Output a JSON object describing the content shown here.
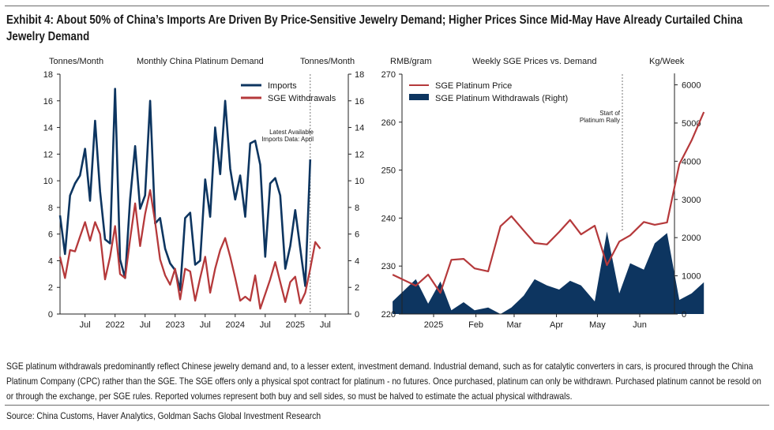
{
  "header": {
    "title": "Exhibit 4: About 50% of China’s Imports Are Driven By Price-Sensitive Jewelry Demand; Higher Prices Since Mid-May Have Already Curtailed China Jewelry Demand"
  },
  "footer": {
    "note": "SGE platinum withdrawals predominantly reflect Chinese jewelry demand and, to a lesser extent, investment demand. Industrial demand, such as for catalytic converters in cars, is procured through the China Platinum Company (CPC) rather than the SGE. The SGE offers only a physical spot contract for platinum - no futures. Once purchased, platinum can only be withdrawn. Purchased platinum cannot be resold on or through the exchange, per SGE rules. Reported volumes represent both buy and sell sides, so must be halved to estimate the actual physical withdrawals.",
    "source": "Source: China Customs, Haver Analytics, Goldman Sachs Global Investment Research"
  },
  "colors": {
    "navy": "#0d3560",
    "red": "#b5393b"
  },
  "chart_data": [
    {
      "type": "line",
      "title": "Monthly China Platinum Demand",
      "ylabel_left": "Tonnes/Month",
      "ylabel_right": "Tonnes/Month",
      "ylim": [
        0,
        18
      ],
      "yticks": [
        0,
        2,
        4,
        6,
        8,
        10,
        12,
        14,
        16,
        18
      ],
      "xtick_labels": [
        "Jul",
        "2022",
        "Jul",
        "2023",
        "Jul",
        "2024",
        "Jul",
        "2025",
        "Jul"
      ],
      "x_start": "2021-02",
      "x_end": "2025-08",
      "grid": false,
      "legend_position": "top-right",
      "annotation": {
        "text_line1": "Latest Available",
        "text_line2": "Imports Data: April",
        "at": "2025-04"
      },
      "series": [
        {
          "name": "Imports",
          "start": "2021-02",
          "values": [
            7.4,
            4.5,
            8.9,
            9.8,
            10.4,
            12.4,
            8.5,
            14.5,
            9.2,
            5.6,
            5.3,
            16.9,
            4.1,
            2.7,
            8.6,
            12.6,
            7.9,
            8.9,
            16.0,
            6.8,
            7.2,
            4.9,
            3.8,
            3.3,
            1.8,
            7.2,
            7.6,
            3.7,
            4.0,
            10.1,
            7.3,
            14.0,
            10.5,
            16.0,
            10.9,
            8.6,
            10.4,
            7.3,
            12.8,
            13.0,
            11.2,
            4.3,
            9.8,
            10.2,
            8.9,
            3.4,
            5.1,
            7.8,
            4.9,
            2.1,
            11.6
          ]
        },
        {
          "name": "SGE Withdrawals",
          "start": "2021-02",
          "values": [
            4.3,
            2.7,
            4.8,
            4.7,
            5.8,
            6.9,
            5.5,
            6.9,
            6.0,
            2.6,
            4.3,
            6.6,
            3.0,
            2.7,
            5.6,
            8.3,
            5.1,
            7.5,
            9.3,
            6.9,
            4.1,
            2.9,
            2.2,
            3.4,
            1.1,
            3.4,
            3.2,
            1.0,
            2.7,
            4.3,
            1.6,
            3.4,
            4.8,
            5.7,
            4.3,
            2.7,
            1.0,
            1.3,
            1.0,
            2.9,
            0.4,
            1.5,
            2.6,
            3.9,
            2.4,
            0.9,
            2.4,
            2.8,
            0.8,
            1.6,
            3.4,
            5.4,
            4.9
          ]
        }
      ]
    },
    {
      "type": "line+area",
      "title": "Weekly SGE Prices vs. Demand",
      "ylabel_left": "RMB/gram",
      "ylabel_right": "Kg/Week",
      "ylim_left": [
        220,
        270
      ],
      "yticks_left": [
        220,
        230,
        240,
        250,
        260,
        270
      ],
      "ylim_right": [
        0,
        6300
      ],
      "yticks_right": [
        0,
        1000,
        2000,
        3000,
        4000,
        5000,
        6000
      ],
      "xtick_labels": [
        "2025",
        "Feb",
        "Mar",
        "Apr",
        "May",
        "Jun"
      ],
      "grid": false,
      "legend_position": "top-left",
      "annotation": {
        "text_line1": "Start of",
        "text_line2": "Platinum Rally",
        "at": "mid-May 2025"
      },
      "x_days_from_2025_01_01": [
        -30,
        -13,
        -4,
        5,
        13,
        22,
        30,
        40,
        49,
        57,
        66,
        74,
        83,
        92,
        100,
        108,
        118,
        127,
        136,
        144,
        154,
        162,
        171,
        180,
        189,
        198
      ],
      "series": [
        {
          "name": "SGE Platinum Price",
          "kind": "line",
          "axis": "left",
          "values": [
            228.2,
            225.9,
            228.2,
            224.4,
            231.3,
            231.5,
            229.5,
            228.9,
            238.3,
            240.4,
            237.4,
            234.8,
            234.5,
            237.1,
            239.6,
            236.6,
            238.4,
            230.2,
            235.1,
            236.4,
            239.2,
            238.6,
            239.1,
            251.2,
            256.2,
            262.1
          ]
        },
        {
          "name": "SGE Platinum Withdrawals (Right)",
          "kind": "area",
          "axis": "right",
          "values": [
            330,
            910,
            270,
            850,
            100,
            310,
            100,
            170,
            0,
            170,
            480,
            910,
            750,
            640,
            870,
            750,
            330,
            2160,
            540,
            1330,
            1160,
            1850,
            2120,
            370,
            540,
            830
          ]
        }
      ]
    }
  ]
}
